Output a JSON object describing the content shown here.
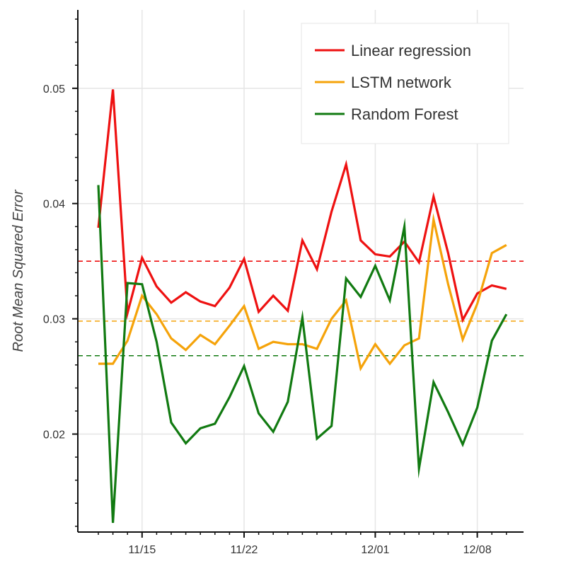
{
  "chart_data": {
    "type": "line",
    "ylabel": "Root Mean Squared Error",
    "xlabel": "",
    "x": [
      "11/12",
      "11/13",
      "11/14",
      "11/15",
      "11/16",
      "11/17",
      "11/18",
      "11/19",
      "11/20",
      "11/21",
      "11/22",
      "11/23",
      "11/24",
      "11/25",
      "11/26",
      "11/27",
      "11/28",
      "11/29",
      "11/30",
      "12/01",
      "12/02",
      "12/03",
      "12/04",
      "12/05",
      "12/06",
      "12/07",
      "12/08",
      "12/09",
      "12/10"
    ],
    "x_ticks": [
      {
        "label": "11/15",
        "index": 3
      },
      {
        "label": "11/22",
        "index": 10
      },
      {
        "label": "12/01",
        "index": 19
      },
      {
        "label": "12/08",
        "index": 26
      }
    ],
    "ylim": [
      0.0115,
      0.0568
    ],
    "y_ticks": [
      0.02,
      0.03,
      0.04,
      0.05
    ],
    "y_tick_labels": [
      "0.02",
      "0.03",
      "0.04",
      "0.05"
    ],
    "y_minor_step": 0.002,
    "grid": true,
    "legend_position": "top-right",
    "series": [
      {
        "name": "Linear regression",
        "color": "#ee1111",
        "values": [
          0.0379,
          0.0499,
          0.0305,
          0.0353,
          0.0328,
          0.0314,
          0.0323,
          0.0315,
          0.0311,
          0.0327,
          0.0352,
          0.0306,
          0.032,
          0.0307,
          0.0368,
          0.0343,
          0.0393,
          0.0434,
          0.0368,
          0.0356,
          0.0354,
          0.0367,
          0.0349,
          0.0406,
          0.0357,
          0.0299,
          0.0322,
          0.0329,
          0.0326
        ]
      },
      {
        "name": "LSTM network",
        "color": "#f5a30a",
        "values": [
          0.0261,
          0.0261,
          0.0281,
          0.032,
          0.0304,
          0.0283,
          0.0273,
          0.0286,
          0.0278,
          0.0294,
          0.0311,
          0.0274,
          0.028,
          0.0278,
          0.0278,
          0.0274,
          0.03,
          0.0316,
          0.0257,
          0.0278,
          0.0261,
          0.0277,
          0.0283,
          0.0386,
          0.033,
          0.0282,
          0.0313,
          0.0357,
          0.0364
        ]
      },
      {
        "name": "Random Forest",
        "color": "#117a11",
        "values": [
          0.0416,
          0.0123,
          0.0331,
          0.033,
          0.028,
          0.021,
          0.0192,
          0.0205,
          0.0209,
          0.0232,
          0.0259,
          0.0218,
          0.0202,
          0.0228,
          0.0301,
          0.0196,
          0.0207,
          0.0335,
          0.0319,
          0.0346,
          0.0316,
          0.038,
          0.017,
          0.0245,
          0.0219,
          0.0191,
          0.0223,
          0.0281,
          0.0304
        ]
      }
    ],
    "reference_lines": [
      {
        "value": 0.035,
        "color": "#ee1111",
        "style": "dashed"
      },
      {
        "value": 0.0298,
        "color": "#f5a30a",
        "style": "dashed"
      },
      {
        "value": 0.0268,
        "color": "#117a11",
        "style": "dashed"
      }
    ]
  }
}
